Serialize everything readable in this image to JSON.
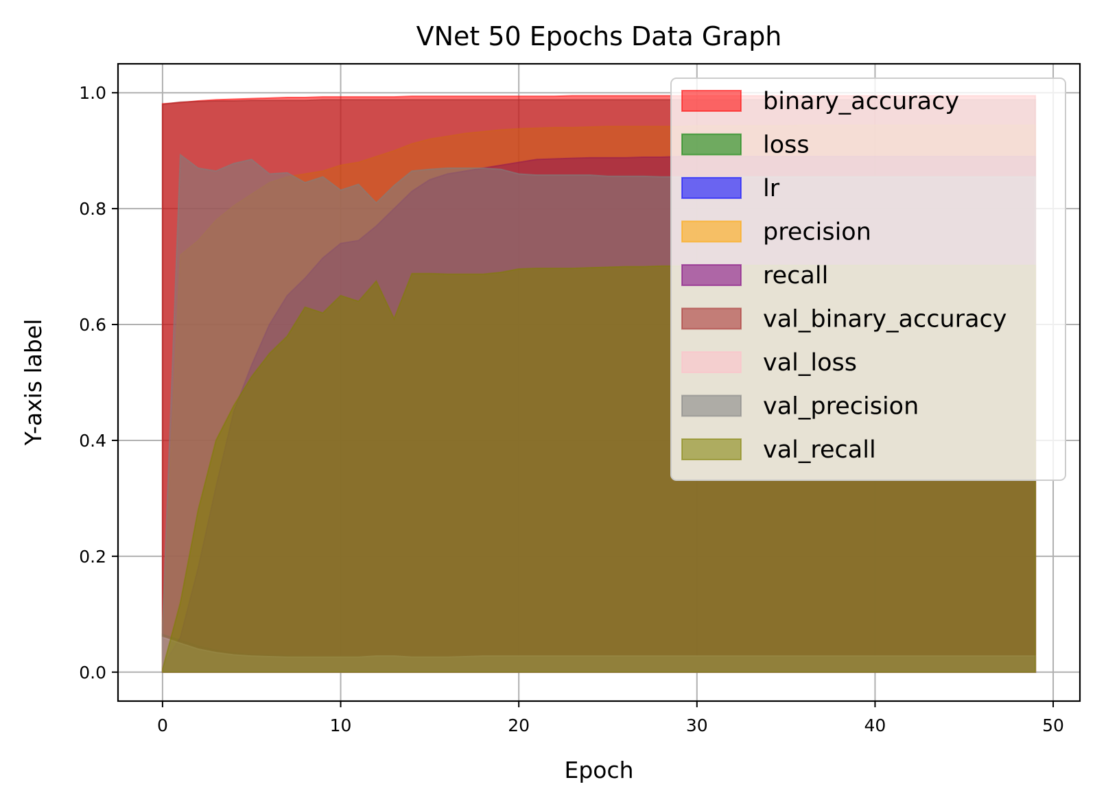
{
  "chart_data": {
    "type": "area",
    "title": "VNet 50 Epochs Data Graph",
    "xlabel": "Epoch",
    "ylabel": "Y-axis label",
    "xlim": [
      -2.5,
      51.5
    ],
    "ylim": [
      -0.05,
      1.05
    ],
    "xticks": [
      0,
      10,
      20,
      30,
      40,
      50
    ],
    "xtick_labels": [
      "0",
      "10",
      "20",
      "30",
      "40",
      "50"
    ],
    "yticks": [
      0.0,
      0.2,
      0.4,
      0.6,
      0.8,
      1.0
    ],
    "ytick_labels": [
      "0.0",
      "0.2",
      "0.4",
      "0.6",
      "0.8",
      "1.0"
    ],
    "grid": true,
    "legend_position": "upper-right",
    "fill_alpha": 0.55,
    "x": [
      0,
      1,
      2,
      3,
      4,
      5,
      6,
      7,
      8,
      9,
      10,
      11,
      12,
      13,
      14,
      15,
      16,
      17,
      18,
      19,
      20,
      21,
      22,
      23,
      24,
      25,
      26,
      27,
      28,
      29,
      30,
      31,
      32,
      33,
      34,
      35,
      36,
      37,
      38,
      39,
      40,
      41,
      42,
      43,
      44,
      45,
      46,
      47,
      48,
      49
    ],
    "series": [
      {
        "name": "binary_accuracy",
        "color": "#ff0000",
        "values": [
          0.981,
          0.983,
          0.986,
          0.988,
          0.989,
          0.99,
          0.991,
          0.992,
          0.992,
          0.993,
          0.993,
          0.993,
          0.993,
          0.993,
          0.994,
          0.994,
          0.994,
          0.994,
          0.994,
          0.994,
          0.994,
          0.994,
          0.994,
          0.995,
          0.995,
          0.995,
          0.995,
          0.995,
          0.995,
          0.995,
          0.995,
          0.995,
          0.995,
          0.995,
          0.995,
          0.995,
          0.995,
          0.995,
          0.995,
          0.995,
          0.995,
          0.995,
          0.995,
          0.995,
          0.995,
          0.995,
          0.995,
          0.995,
          0.995,
          0.995
        ]
      },
      {
        "name": "loss",
        "color": "#008000",
        "values": [
          0.065,
          0.055,
          0.045,
          0.038,
          0.033,
          0.03,
          0.029,
          0.028,
          0.027,
          0.027,
          0.027,
          0.027,
          0.027,
          0.027,
          0.026,
          0.026,
          0.026,
          0.026,
          0.026,
          0.026,
          0.026,
          0.026,
          0.026,
          0.026,
          0.026,
          0.026,
          0.026,
          0.026,
          0.026,
          0.026,
          0.026,
          0.026,
          0.026,
          0.026,
          0.026,
          0.026,
          0.026,
          0.026,
          0.026,
          0.026,
          0.026,
          0.026,
          0.026,
          0.026,
          0.026,
          0.026,
          0.026,
          0.026,
          0.026,
          0.026
        ]
      },
      {
        "name": "lr",
        "color": "#0000ff",
        "values": [
          0.001,
          0.001,
          0.001,
          0.001,
          0.001,
          0.001,
          0.001,
          0.001,
          0.001,
          0.001,
          0.001,
          0.001,
          0.001,
          0.001,
          0.001,
          0.001,
          0.001,
          0.001,
          0.001,
          0.001,
          0.001,
          0.001,
          0.001,
          0.001,
          0.001,
          0.001,
          0.001,
          0.001,
          0.001,
          0.001,
          0.001,
          0.001,
          0.001,
          0.001,
          0.001,
          0.001,
          0.001,
          0.001,
          0.001,
          0.001,
          0.001,
          0.001,
          0.001,
          0.001,
          0.001,
          0.001,
          0.001,
          0.001,
          0.001,
          0.001
        ]
      },
      {
        "name": "precision",
        "color": "#ffa500",
        "values": [
          0.09,
          0.72,
          0.745,
          0.78,
          0.805,
          0.825,
          0.845,
          0.855,
          0.86,
          0.865,
          0.875,
          0.88,
          0.89,
          0.9,
          0.912,
          0.92,
          0.925,
          0.93,
          0.933,
          0.936,
          0.938,
          0.939,
          0.94,
          0.94,
          0.941,
          0.942,
          0.942,
          0.942,
          0.942,
          0.942,
          0.943,
          0.943,
          0.943,
          0.943,
          0.943,
          0.943,
          0.944,
          0.944,
          0.944,
          0.944,
          0.944,
          0.944,
          0.944,
          0.944,
          0.944,
          0.944,
          0.944,
          0.944,
          0.944,
          0.944
        ]
      },
      {
        "name": "recall",
        "color": "#800080",
        "values": [
          0.01,
          0.06,
          0.18,
          0.32,
          0.45,
          0.53,
          0.6,
          0.65,
          0.68,
          0.715,
          0.74,
          0.745,
          0.77,
          0.8,
          0.83,
          0.85,
          0.86,
          0.865,
          0.87,
          0.875,
          0.88,
          0.885,
          0.886,
          0.887,
          0.888,
          0.888,
          0.888,
          0.889,
          0.889,
          0.89,
          0.89,
          0.89,
          0.89,
          0.89,
          0.89,
          0.89,
          0.89,
          0.89,
          0.89,
          0.89,
          0.89,
          0.89,
          0.89,
          0.89,
          0.89,
          0.89,
          0.89,
          0.89,
          0.89,
          0.89
        ]
      },
      {
        "name": "val_binary_accuracy",
        "color": "#a52a2a",
        "values": [
          0.98,
          0.984,
          0.985,
          0.986,
          0.986,
          0.987,
          0.987,
          0.987,
          0.987,
          0.988,
          0.988,
          0.988,
          0.988,
          0.988,
          0.988,
          0.988,
          0.988,
          0.988,
          0.988,
          0.988,
          0.988,
          0.988,
          0.988,
          0.988,
          0.988,
          0.988,
          0.988,
          0.988,
          0.988,
          0.988,
          0.988,
          0.988,
          0.988,
          0.988,
          0.988,
          0.988,
          0.988,
          0.988,
          0.988,
          0.988,
          0.988,
          0.988,
          0.988,
          0.988,
          0.988,
          0.988,
          0.988,
          0.988,
          0.988,
          0.988
        ]
      },
      {
        "name": "val_loss",
        "color": "#ffc0cb",
        "values": [
          0.06,
          0.05,
          0.04,
          0.034,
          0.03,
          0.028,
          0.027,
          0.026,
          0.026,
          0.026,
          0.026,
          0.026,
          0.028,
          0.028,
          0.026,
          0.026,
          0.026,
          0.027,
          0.028,
          0.028,
          0.028,
          0.028,
          0.028,
          0.028,
          0.028,
          0.028,
          0.028,
          0.028,
          0.028,
          0.028,
          0.028,
          0.028,
          0.028,
          0.028,
          0.028,
          0.028,
          0.028,
          0.028,
          0.028,
          0.028,
          0.028,
          0.028,
          0.028,
          0.028,
          0.028,
          0.028,
          0.028,
          0.028,
          0.028,
          0.028
        ]
      },
      {
        "name": "val_precision",
        "color": "#808080",
        "values": [
          0.08,
          0.893,
          0.87,
          0.865,
          0.878,
          0.885,
          0.86,
          0.862,
          0.845,
          0.855,
          0.832,
          0.842,
          0.81,
          0.84,
          0.865,
          0.868,
          0.87,
          0.87,
          0.87,
          0.868,
          0.86,
          0.858,
          0.858,
          0.858,
          0.858,
          0.856,
          0.856,
          0.856,
          0.855,
          0.855,
          0.855,
          0.855,
          0.855,
          0.855,
          0.855,
          0.855,
          0.855,
          0.855,
          0.855,
          0.855,
          0.855,
          0.855,
          0.855,
          0.855,
          0.855,
          0.855,
          0.855,
          0.855,
          0.855,
          0.855
        ]
      },
      {
        "name": "val_recall",
        "color": "#808000",
        "values": [
          0.005,
          0.12,
          0.28,
          0.4,
          0.46,
          0.51,
          0.55,
          0.58,
          0.63,
          0.62,
          0.65,
          0.64,
          0.675,
          0.61,
          0.688,
          0.688,
          0.687,
          0.687,
          0.687,
          0.69,
          0.696,
          0.697,
          0.697,
          0.697,
          0.698,
          0.699,
          0.7,
          0.7,
          0.701,
          0.701,
          0.702,
          0.702,
          0.702,
          0.702,
          0.702,
          0.702,
          0.702,
          0.702,
          0.702,
          0.702,
          0.702,
          0.702,
          0.702,
          0.702,
          0.702,
          0.702,
          0.702,
          0.702,
          0.702,
          0.702
        ]
      }
    ]
  }
}
